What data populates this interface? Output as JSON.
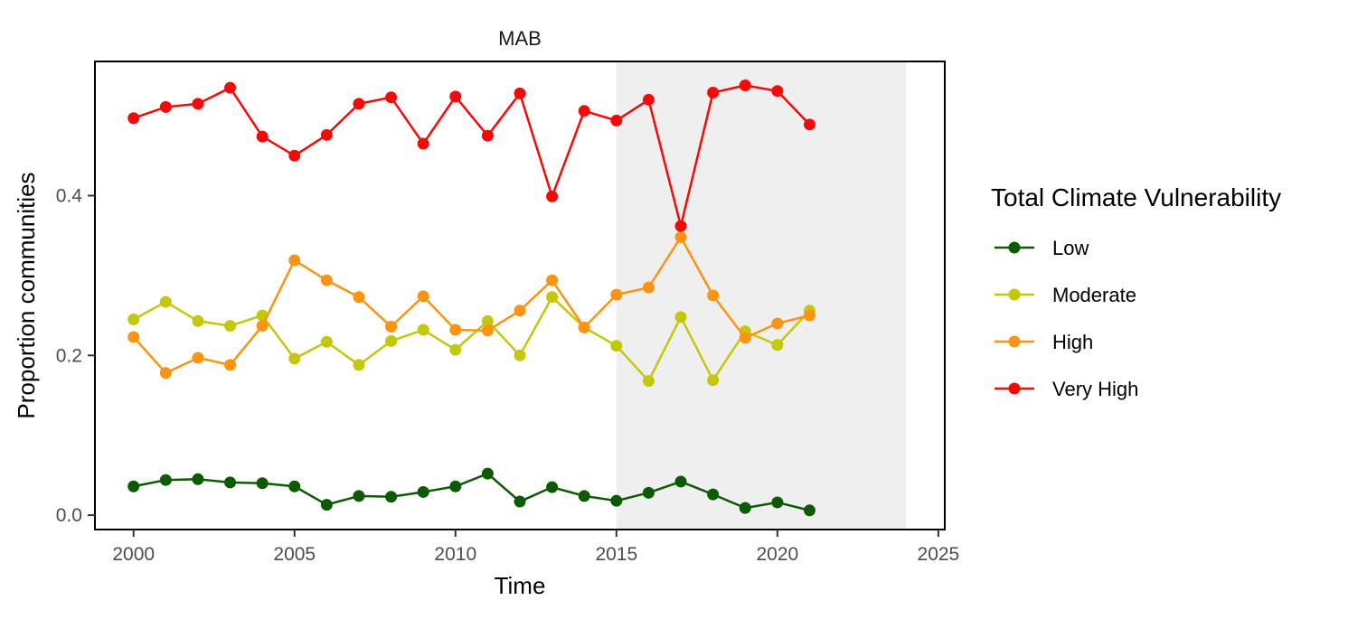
{
  "chart_data": {
    "type": "line",
    "title": "MAB",
    "xlabel": "Time",
    "ylabel": "Proportion communities",
    "xlim": [
      1998.8,
      2025.2
    ],
    "ylim": [
      -0.018,
      0.568
    ],
    "x_ticks": [
      2000,
      2005,
      2010,
      2015,
      2020,
      2025
    ],
    "x_tick_labels": [
      "2000",
      "2005",
      "2010",
      "2015",
      "2020",
      "2025"
    ],
    "y_ticks": [
      0.0,
      0.2,
      0.4
    ],
    "y_tick_labels": [
      "0.0",
      "0.2",
      "0.4"
    ],
    "shaded_region": {
      "x": [
        2015,
        2024
      ],
      "color": "#efefef"
    },
    "grid": false,
    "legend": {
      "title": "Total Climate Vulnerability",
      "position": "right"
    },
    "x": [
      2000,
      2001,
      2002,
      2003,
      2004,
      2005,
      2006,
      2007,
      2008,
      2009,
      2010,
      2011,
      2012,
      2013,
      2014,
      2015,
      2016,
      2017,
      2018,
      2019,
      2020,
      2021
    ],
    "series": [
      {
        "name": "Low",
        "color": "#0c5a02",
        "values": [
          0.036,
          0.044,
          0.045,
          0.041,
          0.04,
          0.036,
          0.013,
          0.024,
          0.023,
          0.029,
          0.036,
          0.052,
          0.017,
          0.035,
          0.024,
          0.018,
          0.028,
          0.042,
          0.026,
          0.009,
          0.016,
          0.006
        ]
      },
      {
        "name": "Moderate",
        "color": "#c3c80a",
        "values": [
          0.245,
          0.267,
          0.243,
          0.237,
          0.25,
          0.196,
          0.217,
          0.188,
          0.218,
          0.232,
          0.207,
          0.243,
          0.2,
          0.273,
          0.235,
          0.212,
          0.168,
          0.248,
          0.169,
          0.23,
          0.213,
          0.256
        ]
      },
      {
        "name": "High",
        "color": "#fa9414",
        "values": [
          0.223,
          0.178,
          0.197,
          0.188,
          0.237,
          0.319,
          0.294,
          0.273,
          0.236,
          0.274,
          0.232,
          0.231,
          0.256,
          0.294,
          0.235,
          0.276,
          0.285,
          0.348,
          0.275,
          0.222,
          0.24,
          0.25
        ]
      },
      {
        "name": "Very High",
        "color": "#f50a0a",
        "values": [
          0.497,
          0.511,
          0.515,
          0.535,
          0.474,
          0.45,
          0.476,
          0.515,
          0.523,
          0.465,
          0.524,
          0.475,
          0.528,
          0.399,
          0.506,
          0.494,
          0.52,
          0.362,
          0.529,
          0.538,
          0.531,
          0.489
        ]
      }
    ]
  }
}
